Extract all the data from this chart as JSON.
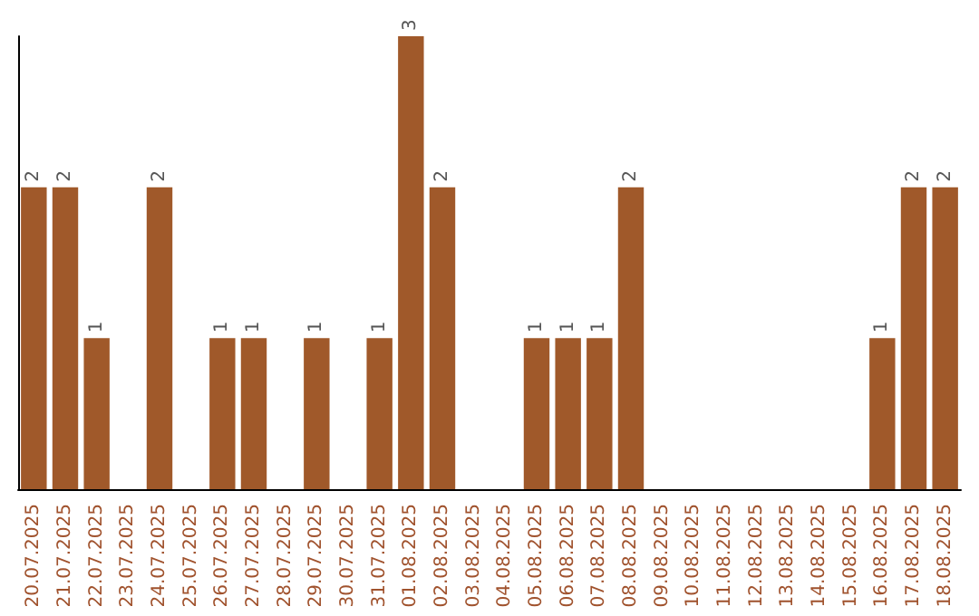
{
  "chart_data": {
    "type": "bar",
    "categories": [
      "20.07.2025",
      "21.07.2025",
      "22.07.2025",
      "23.07.2025",
      "24.07.2025",
      "25.07.2025",
      "26.07.2025",
      "27.07.2025",
      "28.07.2025",
      "29.07.2025",
      "30.07.2025",
      "31.07.2025",
      "01.08.2025",
      "02.08.2025",
      "03.08.2025",
      "04.08.2025",
      "05.08.2025",
      "06.08.2025",
      "07.08.2025",
      "08.08.2025",
      "09.08.2025",
      "10.08.2025",
      "11.08.2025",
      "12.08.2025",
      "13.08.2025",
      "14.08.2025",
      "15.08.2025",
      "16.08.2025",
      "17.08.2025",
      "18.08.2025"
    ],
    "values": [
      2,
      2,
      1,
      0,
      2,
      0,
      1,
      1,
      0,
      1,
      0,
      1,
      3,
      2,
      0,
      0,
      1,
      1,
      1,
      2,
      0,
      0,
      0,
      0,
      0,
      0,
      0,
      1,
      2,
      2
    ],
    "value_labels": [
      "2",
      "2",
      "1",
      null,
      "2",
      null,
      "1",
      "1",
      null,
      "1",
      null,
      "1",
      "3",
      "2",
      null,
      null,
      "1",
      "1",
      "1",
      "2",
      null,
      null,
      null,
      null,
      null,
      null,
      null,
      "1",
      "2",
      "2"
    ],
    "color": "#a0592a",
    "tick_labels": "x"
  }
}
